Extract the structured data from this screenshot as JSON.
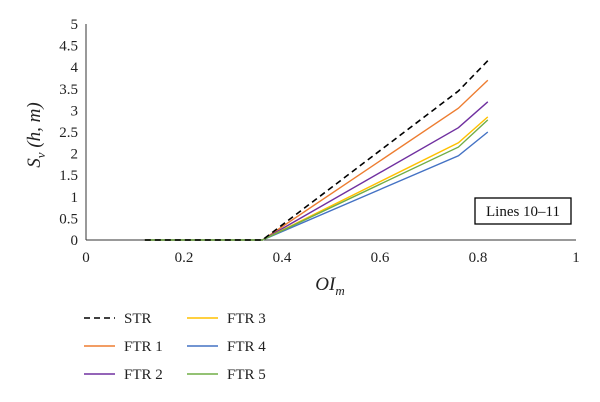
{
  "chart_data": {
    "type": "line",
    "xlabel_main": "OI",
    "xlabel_sub": "m",
    "ylabel_main": "S",
    "ylabel_sub": "v",
    "ylabel_rest": " (h, m)",
    "xlim": [
      0,
      1
    ],
    "ylim": [
      0,
      5
    ],
    "xticks": [
      "0",
      "0.2",
      "0.4",
      "0.6",
      "0.8",
      "1"
    ],
    "yticks": [
      "0",
      "0.5",
      "1",
      "1.5",
      "2",
      "2.5",
      "3",
      "3.5",
      "4",
      "4.5",
      "5"
    ],
    "grid": false,
    "annotation": "Lines 10–11",
    "legend_position": "bottom-left",
    "series": [
      {
        "name": "STR",
        "color": "#000000",
        "dash": true,
        "x": [
          0.12,
          0.36,
          0.76,
          0.82
        ],
        "y": [
          0,
          0,
          3.45,
          4.15
        ]
      },
      {
        "name": "FTR 1",
        "color": "#ED7D31",
        "dash": false,
        "x": [
          0.12,
          0.36,
          0.76,
          0.82
        ],
        "y": [
          0,
          0,
          3.05,
          3.7
        ]
      },
      {
        "name": "FTR 2",
        "color": "#7030A0",
        "dash": false,
        "x": [
          0.12,
          0.36,
          0.76,
          0.82
        ],
        "y": [
          0,
          0,
          2.6,
          3.2
        ]
      },
      {
        "name": "FTR 3",
        "color": "#FFC000",
        "dash": false,
        "x": [
          0.12,
          0.36,
          0.76,
          0.82
        ],
        "y": [
          0,
          0,
          2.25,
          2.85
        ]
      },
      {
        "name": "FTR 4",
        "color": "#4472C4",
        "dash": false,
        "x": [
          0.12,
          0.36,
          0.76,
          0.82
        ],
        "y": [
          0,
          0,
          1.95,
          2.5
        ]
      },
      {
        "name": "FTR 5",
        "color": "#70AD47",
        "dash": false,
        "x": [
          0.12,
          0.36,
          0.76,
          0.82
        ],
        "y": [
          0,
          0,
          2.15,
          2.78
        ]
      }
    ]
  }
}
